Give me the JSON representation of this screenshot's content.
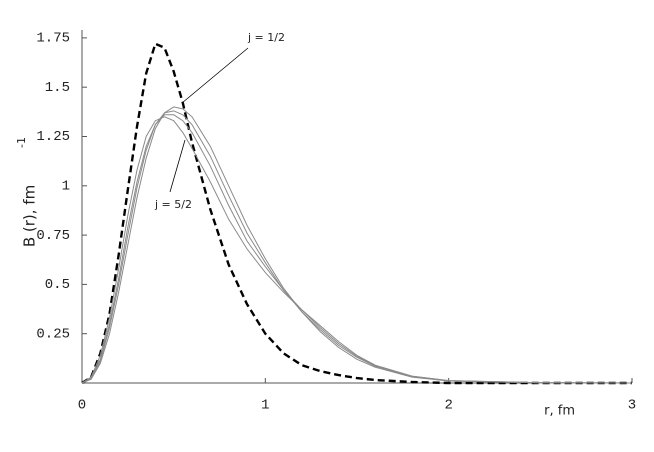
{
  "chart_data": {
    "type": "line",
    "y_label": "B (r),  fm",
    "y_label_sup": "-1",
    "x_label": "r,  fm",
    "annotations": [
      "j = 1/2",
      "j = 5/2"
    ],
    "x": [
      0,
      0.05,
      0.1,
      0.15,
      0.2,
      0.25,
      0.3,
      0.35,
      0.4,
      0.45,
      0.5,
      0.55,
      0.6,
      0.7,
      0.8,
      0.9,
      1.0,
      1.1,
      1.2,
      1.3,
      1.4,
      1.5,
      1.6,
      1.8,
      2.0,
      2.5,
      3.0
    ],
    "series": [
      {
        "color": "#000000",
        "dashed": true,
        "values": [
          0,
          0.03,
          0.15,
          0.35,
          0.65,
          0.98,
          1.3,
          1.57,
          1.72,
          1.7,
          1.58,
          1.42,
          1.22,
          0.88,
          0.6,
          0.4,
          0.25,
          0.15,
          0.09,
          0.06,
          0.04,
          0.025,
          0.015,
          0.005,
          0,
          0,
          0
        ]
      },
      {
        "color": "#8a8a8a",
        "values": [
          0,
          0.02,
          0.1,
          0.25,
          0.46,
          0.7,
          0.94,
          1.14,
          1.29,
          1.37,
          1.4,
          1.39,
          1.35,
          1.2,
          1.0,
          0.8,
          0.63,
          0.48,
          0.36,
          0.26,
          0.18,
          0.12,
          0.08,
          0.03,
          0.01,
          0.001,
          0
        ]
      },
      {
        "color": "#8a8a8a",
        "values": [
          0,
          0.02,
          0.11,
          0.28,
          0.5,
          0.75,
          0.99,
          1.18,
          1.31,
          1.37,
          1.38,
          1.36,
          1.31,
          1.15,
          0.95,
          0.76,
          0.61,
          0.47,
          0.36,
          0.27,
          0.19,
          0.13,
          0.085,
          0.032,
          0.011,
          0.001,
          0
        ]
      },
      {
        "color": "#8a8a8a",
        "values": [
          0,
          0.025,
          0.12,
          0.3,
          0.53,
          0.79,
          1.02,
          1.2,
          1.31,
          1.36,
          1.36,
          1.33,
          1.27,
          1.1,
          0.9,
          0.72,
          0.59,
          0.47,
          0.37,
          0.28,
          0.2,
          0.135,
          0.087,
          0.034,
          0.012,
          0.001,
          0
        ]
      },
      {
        "color": "#8a8a8a",
        "values": [
          0,
          0.03,
          0.14,
          0.33,
          0.58,
          0.85,
          1.08,
          1.25,
          1.33,
          1.35,
          1.33,
          1.27,
          1.19,
          1.02,
          0.83,
          0.68,
          0.56,
          0.46,
          0.37,
          0.29,
          0.21,
          0.14,
          0.09,
          0.035,
          0.012,
          0.001,
          0
        ]
      }
    ],
    "xlim": [
      0,
      3
    ],
    "xticks": [
      0,
      1,
      2,
      3
    ],
    "ylim": [
      0,
      1.79
    ],
    "yticks": [
      0.25,
      0.5,
      0.75,
      1,
      1.25,
      1.5,
      1.75
    ]
  }
}
